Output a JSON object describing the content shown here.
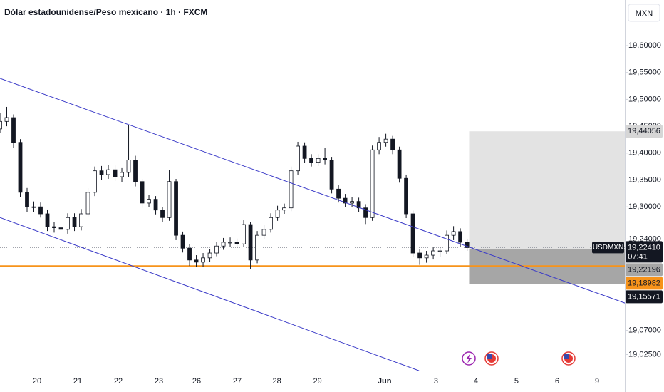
{
  "chart_data": {
    "type": "candlestick",
    "title": "Dólar estadounidense/Peso mexicano · 1h · FXCM",
    "currency": "MXN",
    "symbol": "USDMXN",
    "countdown": "07:41",
    "x": [
      0,
      1,
      2,
      3,
      4,
      5,
      6,
      7,
      8,
      9,
      10,
      11,
      12,
      13,
      14,
      15,
      16,
      17,
      18,
      19,
      20,
      21,
      22,
      23,
      24,
      25,
      26,
      27,
      28,
      29,
      30,
      31,
      32,
      33,
      34,
      35,
      36,
      37,
      38,
      39,
      40,
      41,
      42,
      43,
      44,
      45,
      46,
      47,
      48,
      49,
      50,
      51,
      52,
      53,
      54,
      55,
      56,
      57,
      58,
      59,
      60,
      61,
      62,
      63,
      64,
      65,
      66,
      67,
      68,
      69
    ],
    "open": [
      19.445,
      19.459,
      19.466,
      19.42,
      19.327,
      19.3,
      19.3,
      19.287,
      19.263,
      19.261,
      19.258,
      19.28,
      19.263,
      19.287,
      19.327,
      19.367,
      19.36,
      19.369,
      19.356,
      19.364,
      19.387,
      19.347,
      19.307,
      19.314,
      19.294,
      19.28,
      19.347,
      19.247,
      19.223,
      19.201,
      19.197,
      19.205,
      19.214,
      19.227,
      19.234,
      19.234,
      19.231,
      19.267,
      19.201,
      19.247,
      19.258,
      19.28,
      19.294,
      19.298,
      19.367,
      19.413,
      19.39,
      19.383,
      19.39,
      19.387,
      19.333,
      19.316,
      19.307,
      19.31,
      19.298,
      19.28,
      19.406,
      19.42,
      19.426,
      19.406,
      19.353,
      19.287,
      19.214,
      19.205,
      19.21,
      19.218,
      19.218,
      19.247,
      19.254,
      19.234
    ],
    "high": [
      19.475,
      19.486,
      19.472,
      19.426,
      19.335,
      19.31,
      19.308,
      19.295,
      19.272,
      19.27,
      19.288,
      19.288,
      19.296,
      19.335,
      19.375,
      19.376,
      19.378,
      19.377,
      19.372,
      19.453,
      19.395,
      19.352,
      19.322,
      19.32,
      19.3,
      19.368,
      19.352,
      19.254,
      19.23,
      19.21,
      19.214,
      19.222,
      19.235,
      19.242,
      19.243,
      19.241,
      19.275,
      19.272,
      19.255,
      19.266,
      19.288,
      19.302,
      19.306,
      19.375,
      19.421,
      19.42,
      19.398,
      19.398,
      19.41,
      19.393,
      19.34,
      19.324,
      19.318,
      19.317,
      19.305,
      19.414,
      19.43,
      19.436,
      19.432,
      19.412,
      19.36,
      19.293,
      19.222,
      19.218,
      19.226,
      19.226,
      19.256,
      19.264,
      19.26,
      19.24
    ],
    "low": [
      19.438,
      19.45,
      19.41,
      19.318,
      19.29,
      19.29,
      19.28,
      19.255,
      19.252,
      19.24,
      19.25,
      19.255,
      19.256,
      19.28,
      19.32,
      19.35,
      19.352,
      19.348,
      19.346,
      19.356,
      19.338,
      19.298,
      19.3,
      19.286,
      19.272,
      19.274,
      19.238,
      19.215,
      19.19,
      19.188,
      19.188,
      19.198,
      19.208,
      19.22,
      19.226,
      19.224,
      19.225,
      19.184,
      19.195,
      19.24,
      19.252,
      19.274,
      19.287,
      19.292,
      19.36,
      19.382,
      19.375,
      19.376,
      19.379,
      19.325,
      19.308,
      19.299,
      19.3,
      19.29,
      19.268,
      19.274,
      19.398,
      19.412,
      19.398,
      19.345,
      19.279,
      19.206,
      19.192,
      19.196,
      19.202,
      19.206,
      19.212,
      19.238,
      19.226,
      19.218
    ],
    "close": [
      19.459,
      19.466,
      19.42,
      19.327,
      19.3,
      19.3,
      19.287,
      19.263,
      19.261,
      19.258,
      19.28,
      19.263,
      19.287,
      19.327,
      19.367,
      19.36,
      19.369,
      19.356,
      19.364,
      19.387,
      19.347,
      19.307,
      19.314,
      19.294,
      19.28,
      19.347,
      19.247,
      19.223,
      19.201,
      19.197,
      19.205,
      19.214,
      19.227,
      19.234,
      19.234,
      19.231,
      19.267,
      19.201,
      19.247,
      19.258,
      19.28,
      19.294,
      19.298,
      19.367,
      19.413,
      19.39,
      19.383,
      19.39,
      19.387,
      19.333,
      19.316,
      19.307,
      19.31,
      19.298,
      19.28,
      19.406,
      19.42,
      19.426,
      19.406,
      19.353,
      19.287,
      19.214,
      19.205,
      19.21,
      19.218,
      19.218,
      19.247,
      19.254,
      19.234,
      19.2241
    ],
    "up_color": "#ffffff",
    "down_color": "#131722",
    "xlim": [
      0,
      92.3
    ],
    "xticks": [
      {
        "value": 5.47,
        "label": "20"
      },
      {
        "value": 11.47,
        "label": "21"
      },
      {
        "value": 17.47,
        "label": "22"
      },
      {
        "value": 23.47,
        "label": "23"
      },
      {
        "value": 29.05,
        "label": "26"
      },
      {
        "value": 35.05,
        "label": "27"
      },
      {
        "value": 40.9,
        "label": "28"
      },
      {
        "value": 46.9,
        "label": "29"
      },
      {
        "value": 56.8,
        "label": "Jun"
      },
      {
        "value": 64.4,
        "label": "3"
      },
      {
        "value": 70.3,
        "label": "4"
      },
      {
        "value": 76.3,
        "label": "5"
      },
      {
        "value": 82.3,
        "label": "6"
      },
      {
        "value": 88.2,
        "label": "9"
      }
    ],
    "ylim": [
      18.9952,
      19.6849
    ],
    "yticks": [
      {
        "value": 19.6,
        "label": "19,60000"
      },
      {
        "value": 19.55,
        "label": "19,55000"
      },
      {
        "value": 19.5,
        "label": "19,50000"
      },
      {
        "value": 19.45,
        "label": "19,45000"
      },
      {
        "value": 19.4,
        "label": "19,40000"
      },
      {
        "value": 19.35,
        "label": "19,35000"
      },
      {
        "value": 19.3,
        "label": "19,30000"
      },
      {
        "value": 19.24,
        "label": "19,24000"
      },
      {
        "value": 19.07,
        "label": "19,07000"
      },
      {
        "value": 19.025,
        "label": "19,02500"
      }
    ],
    "trendlines": [
      {
        "color": "#3b3bc8",
        "points": [
          [
            0,
            19.539
          ],
          [
            92.3,
            19.121
          ]
        ]
      },
      {
        "color": "#3b3bc8",
        "points": [
          [
            0,
            19.28
          ],
          [
            61.9,
            18.995
          ]
        ]
      }
    ],
    "hline": {
      "value": 19.18982,
      "label": "19,18982",
      "color": "#f7931a"
    },
    "last_price": {
      "value": 19.2241,
      "label": "19,22410"
    },
    "position": {
      "x_start": 69.3,
      "target": {
        "value": 19.44056,
        "label": "19,44056"
      },
      "entry": {
        "value": 19.22196,
        "label": "19,22196"
      },
      "stop": {
        "value": 19.15571,
        "label": "19,15571"
      }
    }
  }
}
